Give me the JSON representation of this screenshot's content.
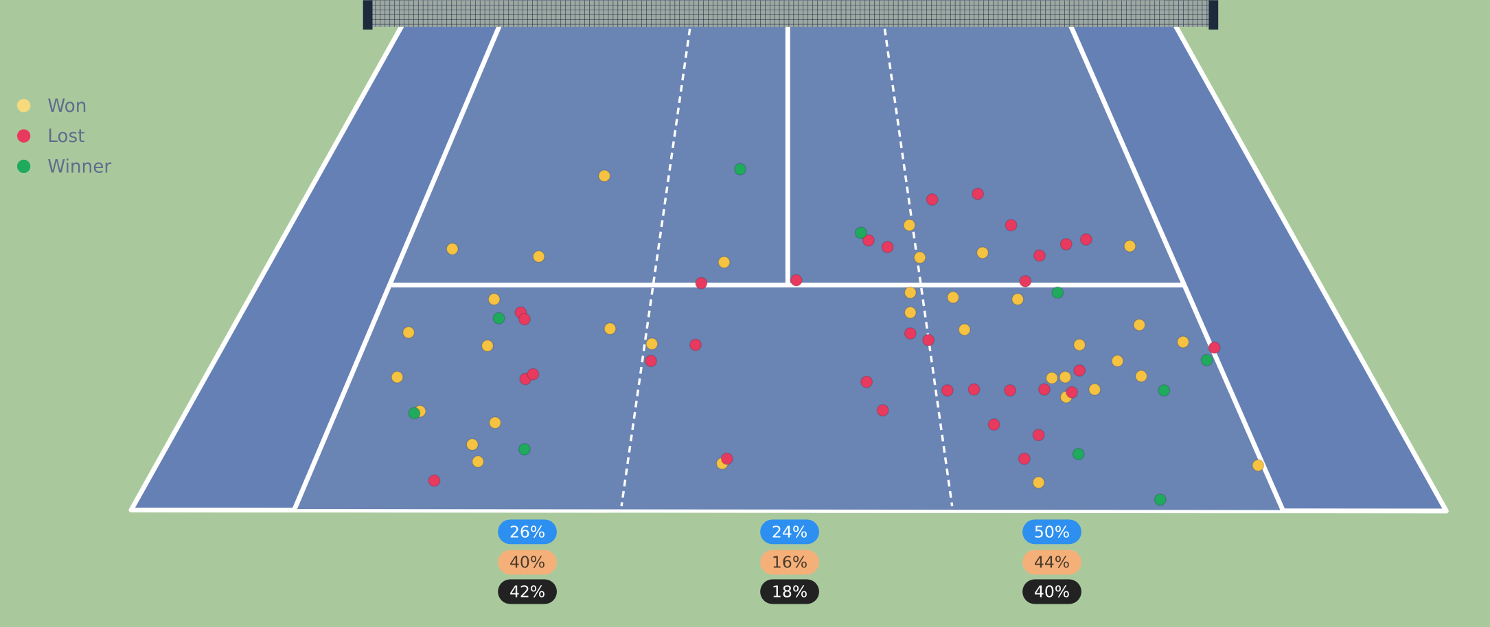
{
  "legend": [
    "Won",
    "Lost",
    "Winner"
  ],
  "zones": [
    [
      "26%",
      "40%",
      "42%"
    ],
    [
      "24%",
      "16%",
      "18%"
    ],
    [
      "50%",
      "44%",
      "40%"
    ]
  ]
}
